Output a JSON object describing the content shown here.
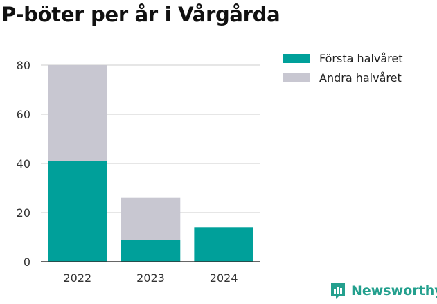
{
  "title": "P-böter per år i Vårgårda",
  "brand": {
    "name": "Newsworthy",
    "icon": "newsworthy-logo-icon",
    "color": "#24a08e"
  },
  "colors": {
    "first_half": "#00a09a",
    "second_half": "#c8c7d1",
    "grid": "#dddddd",
    "axis": "#333333"
  },
  "legend": [
    {
      "label": "Första halvåret",
      "color": "#00a09a"
    },
    {
      "label": "Andra halvåret",
      "color": "#c8c7d1"
    }
  ],
  "chart_data": {
    "type": "bar",
    "stacked": true,
    "title": "P-böter per år i Vårgårda",
    "categories": [
      "2022",
      "2023",
      "2024"
    ],
    "series": [
      {
        "name": "Första halvåret",
        "values": [
          41,
          9,
          14
        ]
      },
      {
        "name": "Andra halvåret",
        "values": [
          39,
          17,
          0
        ]
      }
    ],
    "ylim": [
      0,
      80
    ],
    "yticks": [
      0,
      20,
      40,
      60,
      80
    ],
    "grid": true,
    "legend_position": "top-right",
    "xlabel": "",
    "ylabel": ""
  }
}
